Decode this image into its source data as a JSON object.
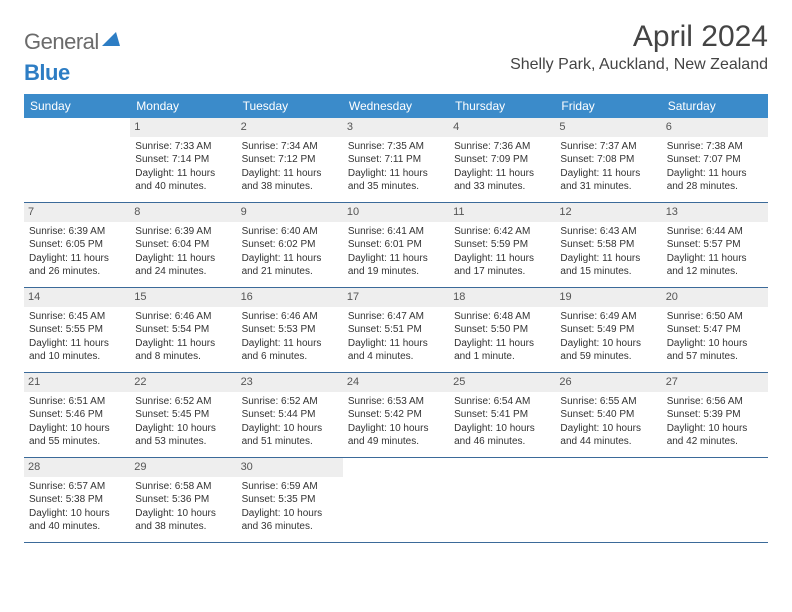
{
  "logo": {
    "part1": "General",
    "part2": "Blue"
  },
  "title": "April 2024",
  "location": "Shelly Park, Auckland, New Zealand",
  "colors": {
    "header_bg": "#3b8bca",
    "header_text": "#ffffff",
    "daynum_bg": "#eeeeee",
    "row_border": "#3b6a99",
    "logo_blue": "#2d7dc4",
    "logo_gray": "#6b6b6b"
  },
  "dayHeaders": [
    "Sunday",
    "Monday",
    "Tuesday",
    "Wednesday",
    "Thursday",
    "Friday",
    "Saturday"
  ],
  "weeks": [
    [
      null,
      {
        "n": "1",
        "sr": "Sunrise: 7:33 AM",
        "ss": "Sunset: 7:14 PM",
        "dl": "Daylight: 11 hours and 40 minutes."
      },
      {
        "n": "2",
        "sr": "Sunrise: 7:34 AM",
        "ss": "Sunset: 7:12 PM",
        "dl": "Daylight: 11 hours and 38 minutes."
      },
      {
        "n": "3",
        "sr": "Sunrise: 7:35 AM",
        "ss": "Sunset: 7:11 PM",
        "dl": "Daylight: 11 hours and 35 minutes."
      },
      {
        "n": "4",
        "sr": "Sunrise: 7:36 AM",
        "ss": "Sunset: 7:09 PM",
        "dl": "Daylight: 11 hours and 33 minutes."
      },
      {
        "n": "5",
        "sr": "Sunrise: 7:37 AM",
        "ss": "Sunset: 7:08 PM",
        "dl": "Daylight: 11 hours and 31 minutes."
      },
      {
        "n": "6",
        "sr": "Sunrise: 7:38 AM",
        "ss": "Sunset: 7:07 PM",
        "dl": "Daylight: 11 hours and 28 minutes."
      }
    ],
    [
      {
        "n": "7",
        "sr": "Sunrise: 6:39 AM",
        "ss": "Sunset: 6:05 PM",
        "dl": "Daylight: 11 hours and 26 minutes."
      },
      {
        "n": "8",
        "sr": "Sunrise: 6:39 AM",
        "ss": "Sunset: 6:04 PM",
        "dl": "Daylight: 11 hours and 24 minutes."
      },
      {
        "n": "9",
        "sr": "Sunrise: 6:40 AM",
        "ss": "Sunset: 6:02 PM",
        "dl": "Daylight: 11 hours and 21 minutes."
      },
      {
        "n": "10",
        "sr": "Sunrise: 6:41 AM",
        "ss": "Sunset: 6:01 PM",
        "dl": "Daylight: 11 hours and 19 minutes."
      },
      {
        "n": "11",
        "sr": "Sunrise: 6:42 AM",
        "ss": "Sunset: 5:59 PM",
        "dl": "Daylight: 11 hours and 17 minutes."
      },
      {
        "n": "12",
        "sr": "Sunrise: 6:43 AM",
        "ss": "Sunset: 5:58 PM",
        "dl": "Daylight: 11 hours and 15 minutes."
      },
      {
        "n": "13",
        "sr": "Sunrise: 6:44 AM",
        "ss": "Sunset: 5:57 PM",
        "dl": "Daylight: 11 hours and 12 minutes."
      }
    ],
    [
      {
        "n": "14",
        "sr": "Sunrise: 6:45 AM",
        "ss": "Sunset: 5:55 PM",
        "dl": "Daylight: 11 hours and 10 minutes."
      },
      {
        "n": "15",
        "sr": "Sunrise: 6:46 AM",
        "ss": "Sunset: 5:54 PM",
        "dl": "Daylight: 11 hours and 8 minutes."
      },
      {
        "n": "16",
        "sr": "Sunrise: 6:46 AM",
        "ss": "Sunset: 5:53 PM",
        "dl": "Daylight: 11 hours and 6 minutes."
      },
      {
        "n": "17",
        "sr": "Sunrise: 6:47 AM",
        "ss": "Sunset: 5:51 PM",
        "dl": "Daylight: 11 hours and 4 minutes."
      },
      {
        "n": "18",
        "sr": "Sunrise: 6:48 AM",
        "ss": "Sunset: 5:50 PM",
        "dl": "Daylight: 11 hours and 1 minute."
      },
      {
        "n": "19",
        "sr": "Sunrise: 6:49 AM",
        "ss": "Sunset: 5:49 PM",
        "dl": "Daylight: 10 hours and 59 minutes."
      },
      {
        "n": "20",
        "sr": "Sunrise: 6:50 AM",
        "ss": "Sunset: 5:47 PM",
        "dl": "Daylight: 10 hours and 57 minutes."
      }
    ],
    [
      {
        "n": "21",
        "sr": "Sunrise: 6:51 AM",
        "ss": "Sunset: 5:46 PM",
        "dl": "Daylight: 10 hours and 55 minutes."
      },
      {
        "n": "22",
        "sr": "Sunrise: 6:52 AM",
        "ss": "Sunset: 5:45 PM",
        "dl": "Daylight: 10 hours and 53 minutes."
      },
      {
        "n": "23",
        "sr": "Sunrise: 6:52 AM",
        "ss": "Sunset: 5:44 PM",
        "dl": "Daylight: 10 hours and 51 minutes."
      },
      {
        "n": "24",
        "sr": "Sunrise: 6:53 AM",
        "ss": "Sunset: 5:42 PM",
        "dl": "Daylight: 10 hours and 49 minutes."
      },
      {
        "n": "25",
        "sr": "Sunrise: 6:54 AM",
        "ss": "Sunset: 5:41 PM",
        "dl": "Daylight: 10 hours and 46 minutes."
      },
      {
        "n": "26",
        "sr": "Sunrise: 6:55 AM",
        "ss": "Sunset: 5:40 PM",
        "dl": "Daylight: 10 hours and 44 minutes."
      },
      {
        "n": "27",
        "sr": "Sunrise: 6:56 AM",
        "ss": "Sunset: 5:39 PM",
        "dl": "Daylight: 10 hours and 42 minutes."
      }
    ],
    [
      {
        "n": "28",
        "sr": "Sunrise: 6:57 AM",
        "ss": "Sunset: 5:38 PM",
        "dl": "Daylight: 10 hours and 40 minutes."
      },
      {
        "n": "29",
        "sr": "Sunrise: 6:58 AM",
        "ss": "Sunset: 5:36 PM",
        "dl": "Daylight: 10 hours and 38 minutes."
      },
      {
        "n": "30",
        "sr": "Sunrise: 6:59 AM",
        "ss": "Sunset: 5:35 PM",
        "dl": "Daylight: 10 hours and 36 minutes."
      },
      null,
      null,
      null,
      null
    ]
  ]
}
